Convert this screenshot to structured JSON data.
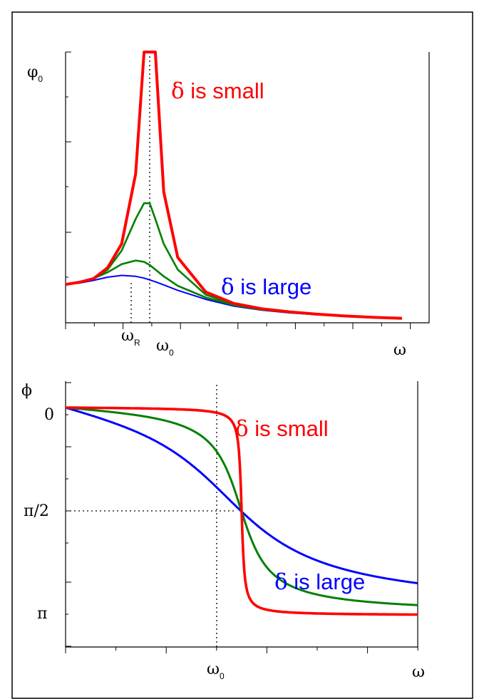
{
  "chart_data": [
    {
      "type": "line",
      "ylabel": {
        "symbol": "φ",
        "subscript": "0"
      },
      "xlabel": "ω",
      "x_tick_labels": [
        {
          "symbol": "ω",
          "subscript": "R"
        },
        {
          "symbol": "ω",
          "subscript": "0"
        }
      ],
      "annotations": [
        {
          "delta": "δ",
          "text": " is small",
          "color": "#ff0000"
        },
        {
          "delta": "δ",
          "text": " is large",
          "color": "#0000ff"
        }
      ],
      "series": [
        {
          "color": "#ff0000",
          "x": [
            0,
            0.5,
            1,
            1.5,
            2,
            2.5,
            2.8,
            3,
            3.2,
            3.5,
            4,
            5,
            6,
            7,
            8,
            9,
            10,
            11,
            12
          ],
          "y": [
            0.85,
            0.9,
            0.98,
            1.22,
            1.75,
            3.3,
            6.0,
            6.0,
            6.0,
            2.9,
            1.45,
            0.68,
            0.43,
            0.31,
            0.24,
            0.19,
            0.15,
            0.12,
            0.1
          ]
        },
        {
          "color": "#008000",
          "x": [
            0,
            0.5,
            1,
            1.5,
            2,
            2.5,
            2.8,
            3,
            3.2,
            3.5,
            4,
            5,
            6,
            7,
            8,
            9,
            10,
            11,
            12
          ],
          "y": [
            0.85,
            0.89,
            0.97,
            1.18,
            1.6,
            2.3,
            2.65,
            2.65,
            2.3,
            1.75,
            1.18,
            0.62,
            0.41,
            0.3,
            0.24,
            0.19,
            0.15,
            0.12,
            0.1
          ]
        },
        {
          "color": "#008000",
          "x": [
            0,
            0.5,
            1,
            1.5,
            2,
            2.5,
            2.8,
            3,
            3.2,
            3.5,
            4,
            5,
            6,
            7,
            8,
            9,
            10,
            11,
            12
          ],
          "y": [
            0.85,
            0.89,
            0.98,
            1.12,
            1.3,
            1.38,
            1.35,
            1.28,
            1.18,
            1.03,
            0.82,
            0.56,
            0.39,
            0.29,
            0.23,
            0.18,
            0.15,
            0.12,
            0.1
          ]
        },
        {
          "color": "#0000ff",
          "x": [
            0,
            0.5,
            1,
            1.5,
            2,
            2.5,
            2.8,
            3,
            3.2,
            3.5,
            4,
            5,
            6,
            7,
            8,
            9,
            10,
            11,
            12
          ],
          "y": [
            0.85,
            0.88,
            0.94,
            1.01,
            1.05,
            1.03,
            0.99,
            0.95,
            0.91,
            0.84,
            0.72,
            0.52,
            0.37,
            0.28,
            0.22,
            0.18,
            0.14,
            0.12,
            0.1
          ]
        }
      ]
    },
    {
      "type": "line",
      "ylabel": "ϕ",
      "xlabel": "ω",
      "y_tick_labels": [
        "0",
        "π/2",
        "π"
      ],
      "x_tick_labels": [
        {
          "symbol": "ω",
          "subscript": "0"
        }
      ],
      "annotations": [
        {
          "delta": "δ",
          "text": " is small",
          "color": "#ff0000"
        },
        {
          "delta": "δ",
          "text": " is large",
          "color": "#0000ff"
        }
      ],
      "series": [
        {
          "color": "#0000ff",
          "damping": 0.4
        },
        {
          "color": "#008000",
          "damping": 0.12
        },
        {
          "color": "#ff0000",
          "damping": 0.012
        }
      ]
    }
  ]
}
